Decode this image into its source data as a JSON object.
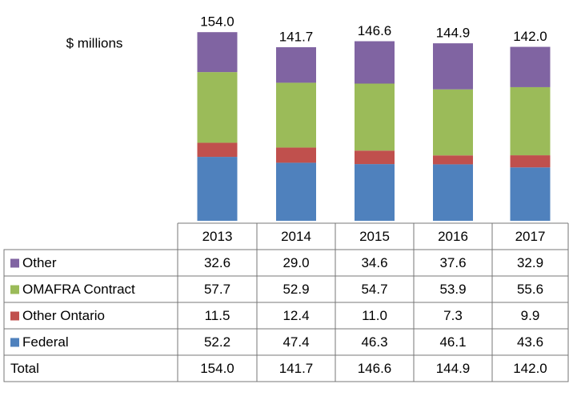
{
  "chart_data": {
    "type": "stacked_bar",
    "y_label": "$ millions",
    "categories": [
      "2013",
      "2014",
      "2015",
      "2016",
      "2017"
    ],
    "ylim": [
      0,
      160
    ],
    "series": [
      {
        "name": "Federal",
        "color": "#4f81bd",
        "values": [
          52.2,
          47.4,
          46.3,
          46.1,
          43.6
        ]
      },
      {
        "name": "Other Ontario",
        "color": "#c0504d",
        "values": [
          11.5,
          12.4,
          11,
          7.3,
          9.9
        ],
        "value_labels": [
          "11.5",
          "12.4",
          "11.0",
          "7.3",
          "9.9"
        ]
      },
      {
        "name": "OMAFRA Contract",
        "color": "#9bbb59",
        "values": [
          57.7,
          52.9,
          54.7,
          53.9,
          55.6
        ]
      },
      {
        "name": "Other",
        "color": "#8064a2",
        "values": [
          32.6,
          29,
          34.6,
          37.6,
          32.9
        ],
        "value_labels": [
          "32.6",
          "29.0",
          "34.6",
          "37.6",
          "32.9"
        ]
      }
    ],
    "total": {
      "name": "Total",
      "values": [
        154,
        141.7,
        146.6,
        144.9,
        142
      ],
      "value_labels": [
        "154.0",
        "141.7",
        "146.6",
        "144.9",
        "142.0"
      ]
    }
  }
}
